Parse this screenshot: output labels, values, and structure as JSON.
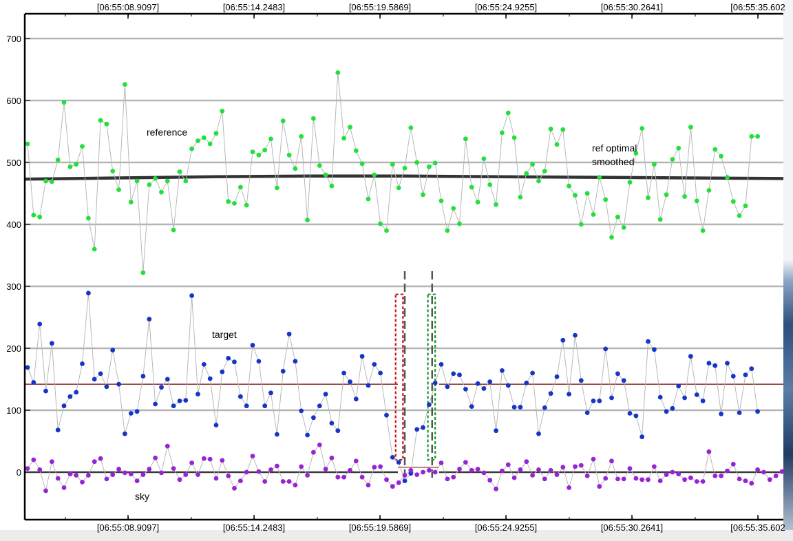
{
  "chart_data": {
    "type": "scatter",
    "title": "",
    "xlabel": "",
    "ylabel": "",
    "x_tick_labels": [
      "[06:55:08.9097]",
      "[06:55:14.2483]",
      "[06:55:19.5869]",
      "[06:55:24.9255]",
      "[06:55:30.2641]",
      "[06:55:35.602"
    ],
    "y_ticks": [
      0,
      100,
      200,
      300,
      400,
      500,
      600,
      700
    ],
    "ylim": [
      -75,
      735
    ],
    "grid": true,
    "n_points": 125,
    "annotations": [
      {
        "id": "reference",
        "text": "reference"
      },
      {
        "id": "target",
        "text": "target"
      },
      {
        "id": "ref_smoothed_1",
        "text": "ref optimal"
      },
      {
        "id": "ref_smoothed_2",
        "text": "smoothed"
      },
      {
        "id": "sky",
        "text": "sky"
      }
    ],
    "series": [
      {
        "key": "reference",
        "color": "#22e03a",
        "values": [
          530,
          415,
          412,
          470,
          469,
          504,
          597,
          493,
          497,
          526,
          410,
          360,
          568,
          562,
          486,
          456,
          626,
          436,
          470,
          322,
          464,
          474,
          452,
          470,
          391,
          485,
          470,
          522,
          535,
          540,
          530,
          547,
          583,
          437,
          434,
          460,
          431,
          517,
          512,
          520,
          538,
          459,
          567,
          512,
          490,
          542,
          407,
          571,
          495,
          480,
          462,
          645,
          539,
          557,
          519,
          498,
          441,
          480,
          401,
          390,
          497,
          459,
          491,
          556,
          500,
          448,
          493,
          499,
          438,
          390,
          426,
          401,
          538,
          460,
          436,
          506,
          464,
          432,
          548,
          580,
          540,
          444,
          482,
          497,
          470,
          486,
          554,
          529,
          553,
          462,
          447,
          400,
          450,
          416,
          476,
          440,
          379,
          412,
          395,
          468,
          515,
          555,
          443,
          497,
          408,
          448,
          505,
          523,
          445,
          557,
          438,
          390,
          455,
          521,
          510,
          476,
          437,
          414,
          430,
          542,
          542
        ]
      },
      {
        "key": "target",
        "color": "#1535c8",
        "values": [
          169,
          145,
          239,
          131,
          208,
          68,
          107,
          122,
          129,
          175,
          289,
          150,
          159,
          138,
          197,
          142,
          62,
          95,
          98,
          155,
          247,
          110,
          137,
          150,
          107,
          115,
          116,
          285,
          126,
          174,
          151,
          76,
          162,
          184,
          178,
          122,
          107,
          205,
          179,
          107,
          128,
          61,
          163,
          223,
          179,
          99,
          60,
          88,
          107,
          126,
          79,
          67,
          160,
          146,
          118,
          187,
          140,
          174,
          160,
          92,
          24,
          16,
          -14,
          -2,
          69,
          72,
          109,
          144,
          174,
          138,
          159,
          157,
          134,
          106,
          143,
          135,
          146,
          67,
          164,
          140,
          105,
          105,
          144,
          160,
          62,
          104,
          127,
          154,
          213,
          126,
          221,
          148,
          96,
          115,
          115,
          199,
          120,
          159,
          148,
          95,
          91,
          57,
          211,
          198,
          121,
          98,
          103,
          139,
          120,
          187,
          125,
          115,
          176,
          172,
          94,
          176,
          155,
          96,
          157,
          167,
          98
        ]
      },
      {
        "key": "sky",
        "color": "#9a22d6",
        "values": [
          6,
          20,
          4,
          -30,
          17,
          -10,
          -25,
          -3,
          -5,
          -16,
          -5,
          17,
          22,
          -11,
          -4,
          5,
          -1,
          -3,
          -14,
          -4,
          5,
          23,
          -1,
          42,
          6,
          -12,
          -4,
          15,
          -4,
          22,
          21,
          -10,
          19,
          -6,
          -26,
          -14,
          0,
          26,
          1,
          -15,
          4,
          10,
          -15,
          -15,
          -21,
          9,
          -5,
          32,
          44,
          5,
          23,
          -8,
          -8,
          3,
          18,
          -8,
          -21,
          8,
          9,
          -12,
          -23,
          -17,
          -5,
          3,
          -4,
          0,
          3,
          0,
          15,
          -11,
          -8,
          5,
          16,
          3,
          5,
          -1,
          -13,
          -27,
          2,
          12,
          -9,
          4,
          17,
          -5,
          4,
          -11,
          3,
          -4,
          8,
          -25,
          9,
          11,
          -6,
          21,
          -23,
          -10,
          18,
          -11,
          -11,
          6,
          -10,
          -12,
          -12,
          9,
          -14,
          -4,
          0,
          -3,
          -12,
          -9,
          -15,
          -15,
          33,
          -6,
          -6,
          2,
          13,
          -11,
          -14,
          -18,
          4,
          0,
          -12,
          -6,
          1
        ]
      }
    ],
    "smoothed_ref_values": [
      473,
      475,
      477,
      478,
      478,
      477,
      476,
      475,
      474
    ],
    "target_mean": 142,
    "sky_mean": 0,
    "markers": {
      "dashed_gray_x_index": [
        62,
        66.5
      ],
      "red_band_index": [
        60.5,
        61.7
      ],
      "green_band_index": [
        65.8,
        67.0
      ],
      "band_y_range": [
        20,
        287
      ]
    }
  }
}
